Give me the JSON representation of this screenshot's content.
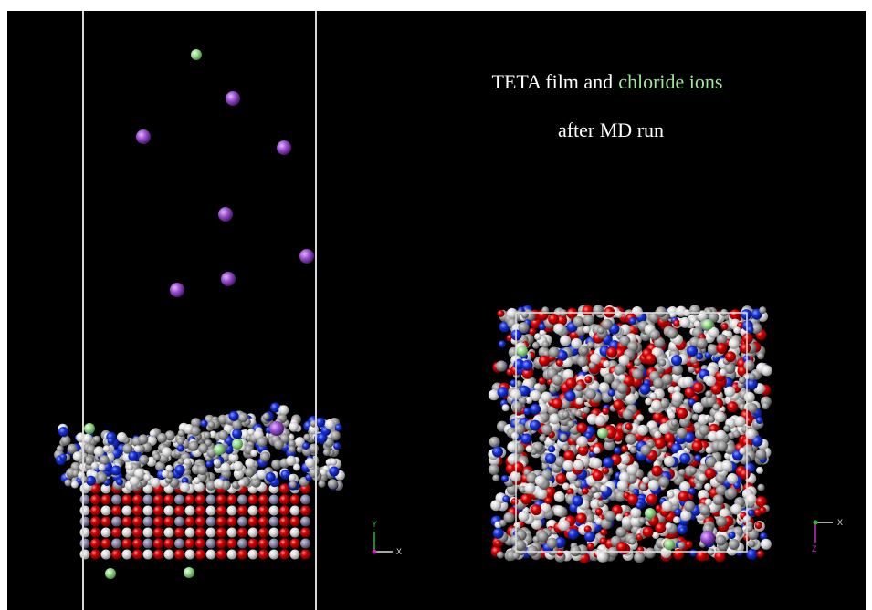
{
  "caption": {
    "line1": "TETA film and",
    "highlight": "chloride ions",
    "line2": "after MD run"
  },
  "axes_left": {
    "y": "Y",
    "x": "X"
  },
  "axes_right": {
    "x": "X",
    "z": "Z"
  }
}
